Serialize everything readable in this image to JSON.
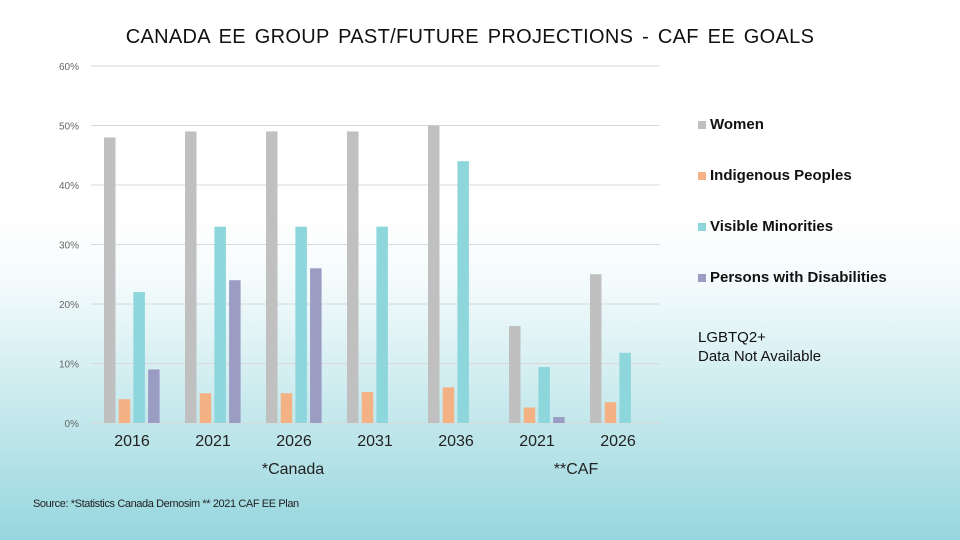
{
  "chart_data": {
    "type": "bar",
    "title": "CANADA  EE GROUP PAST/FUTURE  PROJECTIONS  - CAF EE GOALS",
    "xlabel": "",
    "ylabel": "",
    "ylim": [
      0,
      60
    ],
    "yticks": [
      "0%",
      "10%",
      "20%",
      "30%",
      "40%",
      "50%",
      "60%"
    ],
    "grid": true,
    "legend_position": "right",
    "categories": [
      "2016",
      "2021",
      "2026",
      "2031",
      "2036",
      "2021",
      "2026"
    ],
    "category_groups": [
      {
        "label": "*Canada",
        "categories": [
          0,
          1,
          2,
          3,
          4
        ]
      },
      {
        "label": "**CAF",
        "categories": [
          5,
          6
        ]
      }
    ],
    "series": [
      {
        "name": "Women",
        "color": "#c0c0c0",
        "values": [
          48,
          49,
          49,
          49,
          50,
          16.3,
          25
        ]
      },
      {
        "name": "Indigenous Peoples",
        "color": "#f4b183",
        "values": [
          4,
          5,
          5,
          5.2,
          6,
          2.6,
          3.5
        ]
      },
      {
        "name": "Visible Minorities",
        "color": "#8dd6dc",
        "values": [
          22,
          33,
          33,
          33,
          44,
          9.4,
          11.8
        ]
      },
      {
        "name": "Persons with Disabilities",
        "color": "#9a9cc4",
        "values": [
          9,
          24,
          26,
          null,
          null,
          1.0,
          null
        ]
      }
    ],
    "annotations": [
      "LGBTQ2+",
      "Data Not Available"
    ]
  },
  "source": "Source: *Statistics Canada Demosim ** 2021 CAF EE Plan"
}
